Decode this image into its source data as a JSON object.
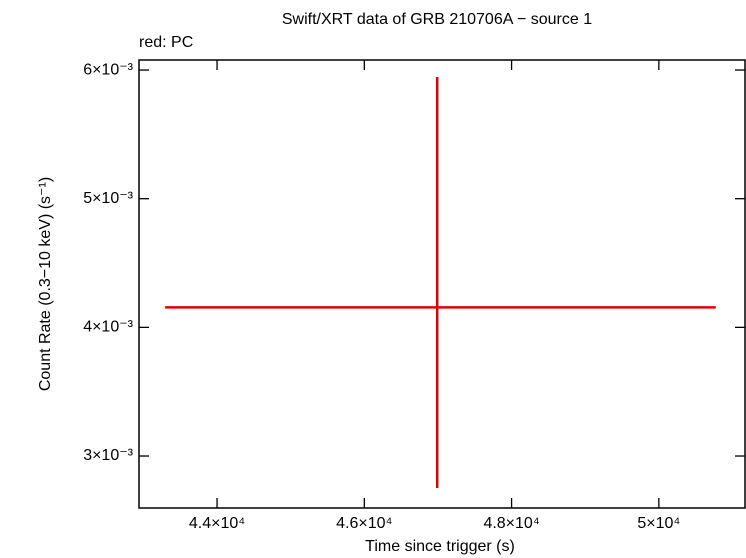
{
  "chart_data": {
    "type": "errorbar",
    "title": "Swift/XRT data of GRB 210706A − source 1",
    "subtitle": "red: PC",
    "x_label": "Time since trigger (s)",
    "y_label": "Count Rate (0.3−10 keV) (s⁻¹)",
    "series": [
      {
        "name": "PC",
        "color": "#e00000",
        "x": [
          46990
        ],
        "x_err_minus": [
          3695
        ],
        "x_err_plus": [
          3783
        ],
        "values": [
          0.004155
        ],
        "y_err_minus": [
          0.001404
        ],
        "y_err_plus": [
          0.001791
        ]
      }
    ],
    "xlim": [
      42940,
      51170
    ],
    "xticks": [
      {
        "value": 44000,
        "label": "4.4×10⁴"
      },
      {
        "value": 46000,
        "label": "4.6×10⁴"
      },
      {
        "value": 48000,
        "label": "4.8×10⁴"
      },
      {
        "value": 50000,
        "label": "5×10⁴"
      }
    ],
    "ylim": [
      0.002596,
      0.006078
    ],
    "yticks": [
      {
        "value": 0.003,
        "label": "3×10⁻³"
      },
      {
        "value": 0.004,
        "label": "4×10⁻³"
      },
      {
        "value": 0.005,
        "label": "5×10⁻³"
      },
      {
        "value": 0.006,
        "label": "6×10⁻³"
      }
    ]
  }
}
